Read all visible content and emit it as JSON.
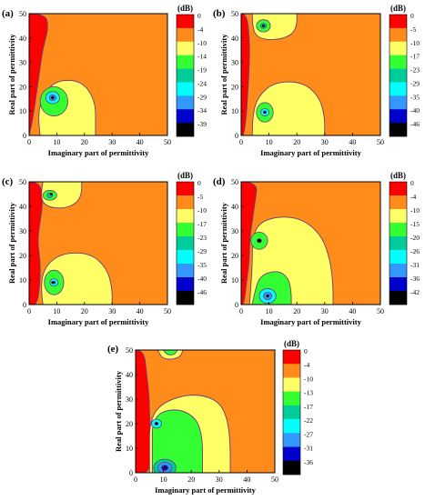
{
  "chart_data": [
    {
      "type": "heatmap",
      "panel_label": "(a)",
      "xlabel": "Imaginary part of permittivity",
      "ylabel": "Real part of permittivity",
      "xlim": [
        0,
        50
      ],
      "ylim": [
        0,
        50
      ],
      "xticks": [
        0,
        10,
        20,
        30,
        40,
        50
      ],
      "yticks": [
        0,
        10,
        20,
        30,
        40,
        50
      ],
      "colorbar_title": "(dB)",
      "colorbar_levels": [
        0,
        -4,
        -10,
        -14,
        -19,
        -24,
        -29,
        -34,
        -39
      ],
      "minima": [
        {
          "x": 8.5,
          "y": 15.5,
          "value": -39
        }
      ]
    },
    {
      "type": "heatmap",
      "panel_label": "(b)",
      "xlabel": "Imaginary part of permittivity",
      "ylabel": "Real part of permittivity",
      "xlim": [
        0,
        50
      ],
      "ylim": [
        0,
        50
      ],
      "xticks": [
        0,
        10,
        20,
        30,
        40,
        50
      ],
      "yticks": [
        0,
        10,
        20,
        30,
        40,
        50
      ],
      "colorbar_title": "(dB)",
      "colorbar_levels": [
        0,
        -5,
        -10,
        -17,
        -23,
        -29,
        -35,
        -40,
        -46
      ],
      "minima": [
        {
          "x": 8,
          "y": 45,
          "value": -17
        },
        {
          "x": 8.5,
          "y": 9.5,
          "value": -46
        }
      ]
    },
    {
      "type": "heatmap",
      "panel_label": "(c)",
      "xlabel": "Imaginary part of permittivity",
      "ylabel": "Real part of permittivity",
      "xlim": [
        0,
        50
      ],
      "ylim": [
        0,
        50
      ],
      "xticks": [
        0,
        10,
        20,
        30,
        40,
        50
      ],
      "yticks": [
        0,
        10,
        20,
        30,
        40,
        50
      ],
      "colorbar_title": "(dB)",
      "colorbar_levels": [
        0,
        -5,
        -10,
        -17,
        -23,
        -29,
        -35,
        -40,
        -46
      ],
      "minima": [
        {
          "x": 8,
          "y": 45,
          "value": -17
        },
        {
          "x": 8.5,
          "y": 9,
          "value": -46
        }
      ]
    },
    {
      "type": "heatmap",
      "panel_label": "(d)",
      "xlabel": "Imaginary part of permittivity",
      "ylabel": "Real part of permittivity",
      "xlim": [
        0,
        50
      ],
      "ylim": [
        0,
        50
      ],
      "xticks": [
        0,
        10,
        20,
        30,
        40,
        50
      ],
      "yticks": [
        0,
        10,
        20,
        30,
        40,
        50
      ],
      "colorbar_title": "(dB)",
      "colorbar_levels": [
        0,
        -4,
        -10,
        -15,
        -20,
        -26,
        -31,
        -36,
        -42
      ],
      "minima": [
        {
          "x": 6.5,
          "y": 26,
          "value": -42
        },
        {
          "x": 9.5,
          "y": 3.5,
          "value": -42
        }
      ]
    },
    {
      "type": "heatmap",
      "panel_label": "(e)",
      "xlabel": "Imaginary part of permittivity",
      "ylabel": "Real part of permittivity",
      "xlim": [
        0,
        50
      ],
      "ylim": [
        0,
        50
      ],
      "xticks": [
        0,
        10,
        20,
        30,
        40,
        50
      ],
      "yticks": [
        0,
        10,
        20,
        30,
        40,
        50
      ],
      "colorbar_title": "(dB)",
      "colorbar_levels": [
        0,
        -4,
        -10,
        -13,
        -17,
        -22,
        -27,
        -31,
        -36
      ],
      "minima": [
        {
          "x": 7.5,
          "y": 20,
          "value": -36
        },
        {
          "x": 10.5,
          "y": 2,
          "value": -36
        }
      ]
    }
  ],
  "colors": {
    "bands": [
      "#ff0000",
      "#ff8c1a",
      "#ffff66",
      "#33ff33",
      "#00cc99",
      "#00ffff",
      "#3399ff",
      "#0000cc",
      "#000000"
    ],
    "background": "#ff8c1a",
    "contour_line": "#6b3a7a",
    "grid_line": "#b0b0b0"
  }
}
